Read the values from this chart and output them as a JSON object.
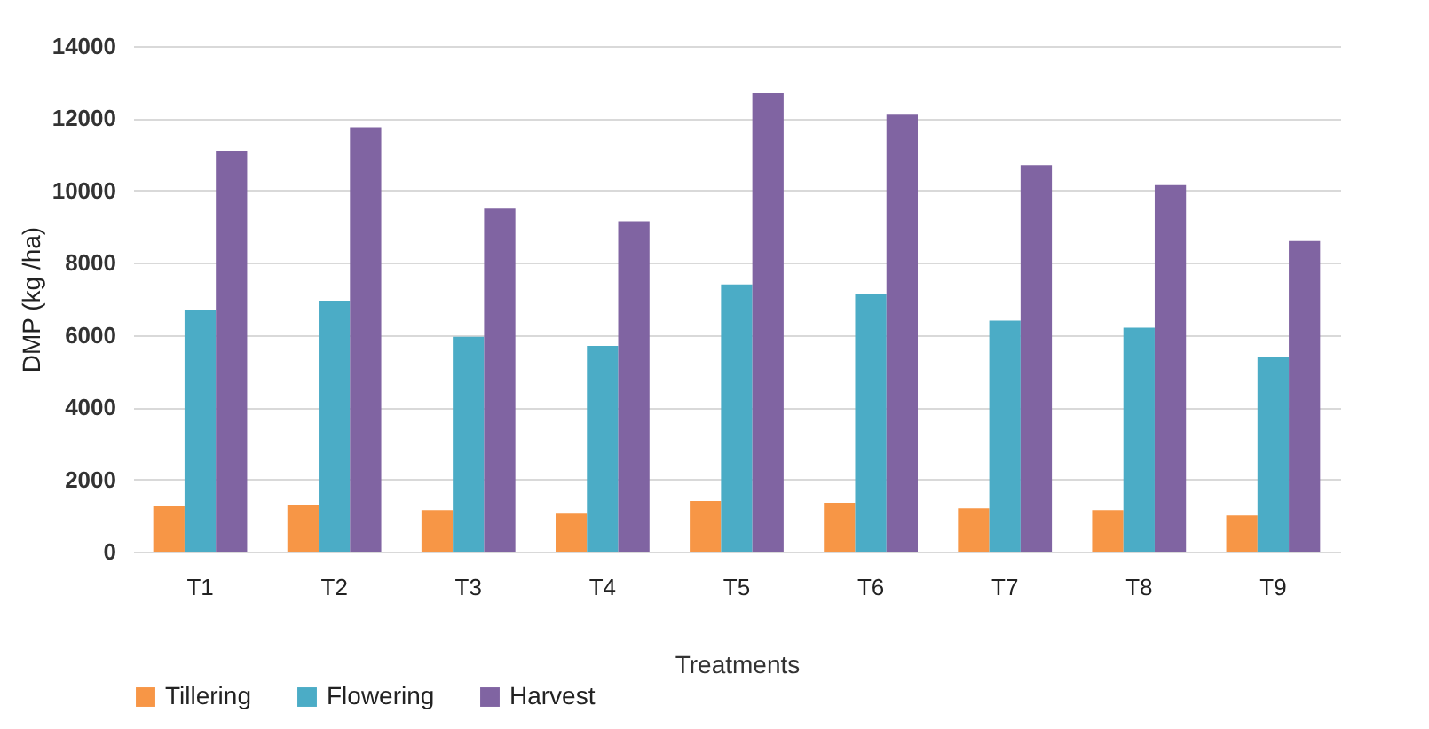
{
  "chart_data": {
    "type": "bar",
    "xlabel": "Treatments",
    "ylabel": "DMP (kg /ha)",
    "categories": [
      "T1",
      "T2",
      "T3",
      "T4",
      "T5",
      "T6",
      "T7",
      "T8",
      "T9"
    ],
    "series": [
      {
        "name": "Tillering",
        "color": "#f79646",
        "values": [
          1250,
          1300,
          1150,
          1050,
          1400,
          1350,
          1200,
          1150,
          1000
        ]
      },
      {
        "name": "Flowering",
        "color": "#4bacc6",
        "values": [
          6700,
          6950,
          5950,
          5700,
          7400,
          7150,
          6400,
          6200,
          5400
        ]
      },
      {
        "name": "Harvest",
        "color": "#8064a2",
        "values": [
          11100,
          11750,
          9500,
          9150,
          12700,
          12100,
          10700,
          10150,
          8600
        ]
      }
    ],
    "ylim": [
      0,
      14000
    ],
    "yticks": [
      0,
      2000,
      4000,
      6000,
      8000,
      10000,
      12000,
      14000
    ],
    "grid": "y",
    "legend": "bottom"
  }
}
